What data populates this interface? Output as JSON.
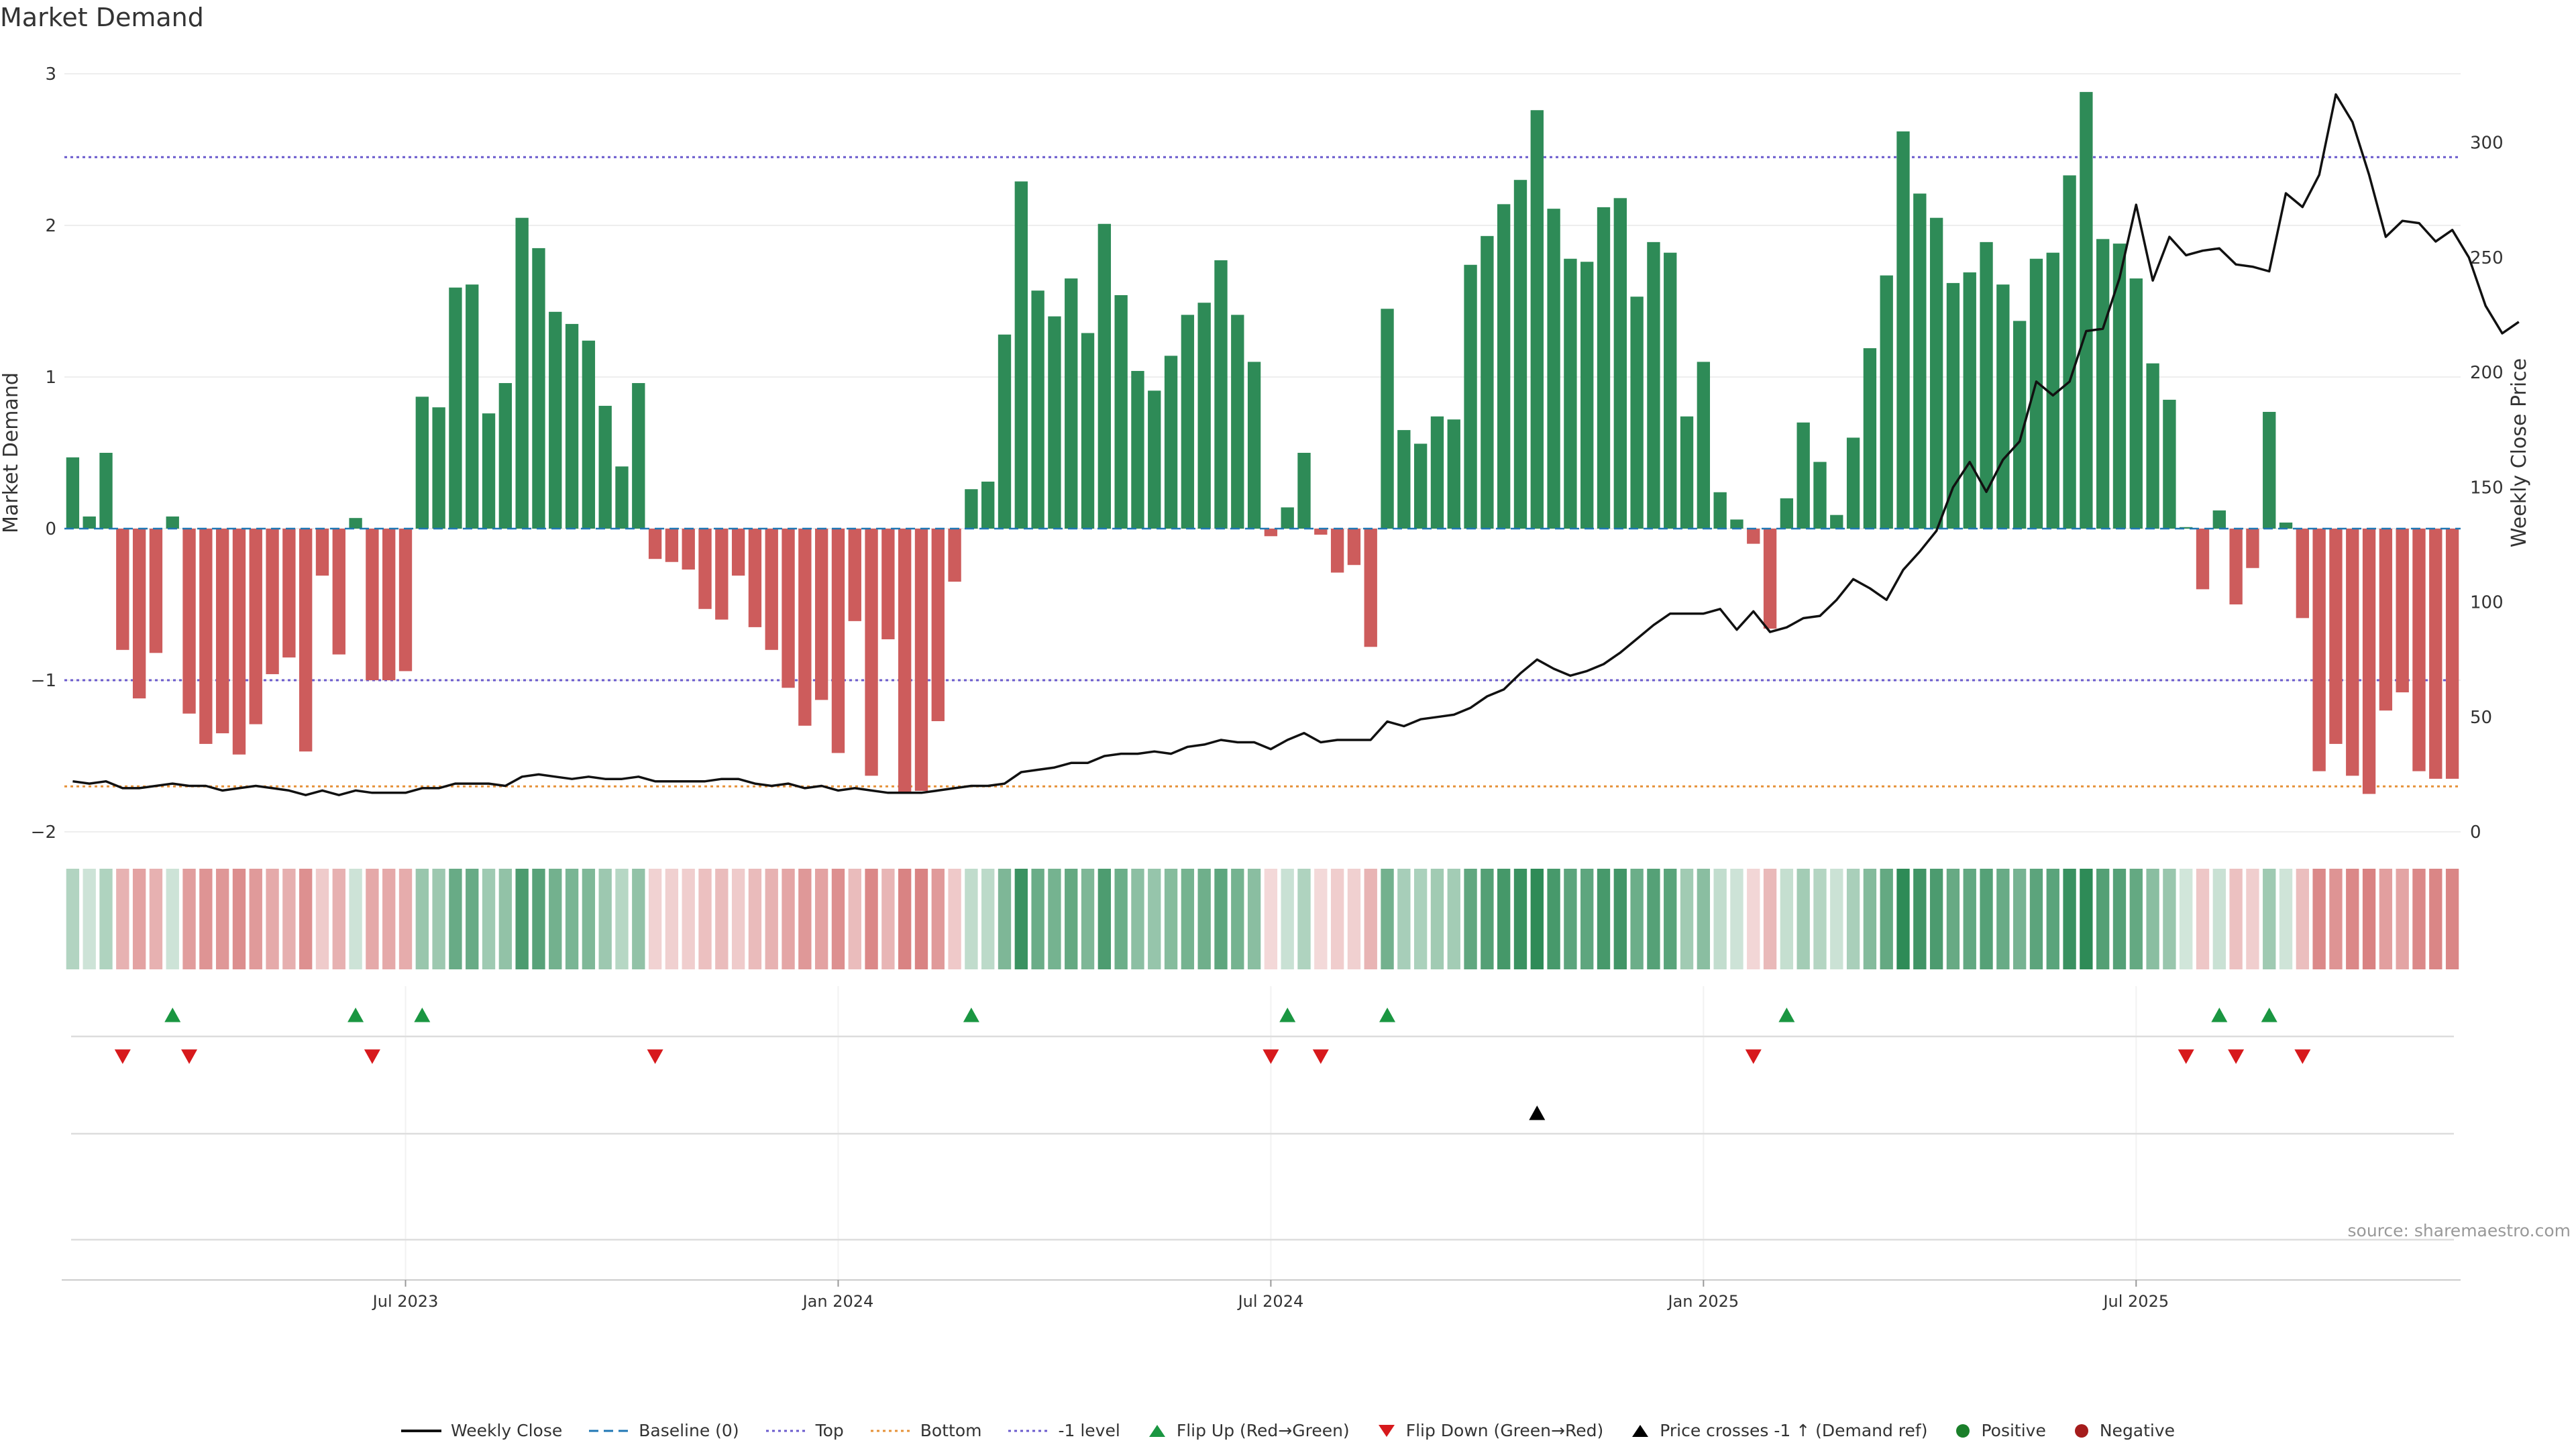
{
  "page": {
    "title": "Market Demand",
    "source": "source: sharemaestro.com"
  },
  "colors": {
    "positive": "#2e8b57",
    "negative": "#cd5c5c",
    "price": "#111111",
    "top": "#6a5acd",
    "bottom": "#e69138",
    "minus1": "#6a5acd",
    "flip_up": "#1a9641",
    "flip_down": "#d7191c",
    "cross": "#000000",
    "dot_pos": "#1a7f2a",
    "dot_neg": "#a51c1c"
  },
  "chart_data": {
    "type": "bar",
    "title": "Market Demand",
    "ylabel": "Market Demand",
    "y2label": "Weekly Close Price",
    "ylim": [
      -2,
      3
    ],
    "y2lim": [
      0,
      330
    ],
    "y_ticks": [
      "3",
      "2",
      "1",
      "0",
      "−1",
      "−2"
    ],
    "y2_ticks": [
      "300",
      "250",
      "200",
      "150",
      "100",
      "50",
      "0"
    ],
    "x_ticks": [
      {
        "label": "Jul 2023",
        "week": 20
      },
      {
        "label": "Jan 2024",
        "week": 46
      },
      {
        "label": "Jul 2024",
        "week": 72
      },
      {
        "label": "Jan 2025",
        "week": 98
      },
      {
        "label": "Jul 2025",
        "week": 124
      }
    ],
    "levels": {
      "top": 2.45,
      "bottom": -1.7,
      "minus1": -1.0,
      "baseline": 0
    },
    "demand": [
      0.47,
      0.08,
      0.5,
      -0.8,
      -1.12,
      -0.82,
      0.08,
      -1.22,
      -1.42,
      -1.35,
      -1.49,
      -1.29,
      -0.96,
      -0.85,
      -1.47,
      -0.31,
      -0.83,
      0.07,
      -1.0,
      -1.0,
      -0.94,
      0.87,
      0.8,
      1.59,
      1.61,
      0.76,
      0.96,
      2.05,
      1.85,
      1.43,
      1.35,
      1.24,
      0.81,
      0.41,
      0.96,
      -0.2,
      -0.22,
      -0.27,
      -0.53,
      -0.6,
      -0.31,
      -0.65,
      -0.8,
      -1.05,
      -1.3,
      -1.13,
      -1.48,
      -0.61,
      -1.63,
      -0.73,
      -1.74,
      -1.73,
      -1.27,
      -0.35,
      0.26,
      0.31,
      1.28,
      2.29,
      1.57,
      1.4,
      1.65,
      1.29,
      2.01,
      1.54,
      1.04,
      0.91,
      1.14,
      1.41,
      1.49,
      1.77,
      1.41,
      1.1,
      -0.05,
      0.14,
      0.5,
      -0.04,
      -0.29,
      -0.24,
      -0.78,
      1.45,
      0.65,
      0.56,
      0.74,
      0.72,
      1.74,
      1.93,
      2.14,
      2.3,
      2.76,
      2.11,
      1.78,
      1.76,
      2.12,
      2.18,
      1.53,
      1.89,
      1.82,
      0.74,
      1.1,
      0.24,
      0.06,
      -0.1,
      -0.66,
      0.2,
      0.7,
      0.44,
      0.09,
      0.6,
      1.19,
      1.67,
      2.62,
      2.21,
      2.05,
      1.62,
      1.69,
      1.89,
      1.61,
      1.37,
      1.78,
      1.82,
      2.33,
      2.88,
      1.91,
      1.88,
      1.65,
      1.09,
      0.85,
      0.01,
      -0.4,
      0.12,
      -0.5,
      -0.26,
      0.77,
      0.04,
      -0.59,
      -1.6,
      -1.42,
      -1.63,
      -1.75,
      -1.2,
      -1.08,
      -1.6,
      -1.65,
      -1.65
    ],
    "price": [
      22,
      21,
      22,
      19,
      19,
      20,
      21,
      20,
      20,
      18,
      19,
      20,
      19,
      18,
      16,
      18,
      16,
      18,
      17,
      17,
      17,
      19,
      19,
      21,
      21,
      21,
      20,
      24,
      25,
      24,
      23,
      24,
      23,
      23,
      24,
      22,
      22,
      22,
      22,
      23,
      23,
      21,
      20,
      21,
      19,
      20,
      18,
      19,
      18,
      17,
      17,
      17,
      18,
      19,
      20,
      20,
      21,
      26,
      27,
      28,
      30,
      30,
      33,
      34,
      34,
      35,
      34,
      37,
      38,
      40,
      39,
      39,
      36,
      40,
      43,
      39,
      40,
      40,
      40,
      48,
      46,
      49,
      50,
      51,
      54,
      59,
      62,
      69,
      75,
      71,
      68,
      70,
      73,
      78,
      84,
      90,
      95,
      95,
      95,
      97,
      88,
      96,
      87,
      89,
      93,
      94,
      101,
      110,
      106,
      101,
      114,
      122,
      131,
      150,
      161,
      148,
      162,
      170,
      196,
      190,
      196,
      218,
      219,
      241,
      273,
      240,
      259,
      251,
      253,
      254,
      247,
      246,
      244,
      278,
      272,
      286,
      321,
      309,
      286,
      259,
      266,
      265,
      257,
      262,
      250,
      229,
      217,
      222
    ],
    "flip_up_weeks": [
      6,
      17,
      21,
      54,
      73,
      79,
      103,
      129,
      132
    ],
    "flip_down_weeks": [
      3,
      7,
      18,
      35,
      72,
      75,
      101,
      127,
      130,
      134
    ],
    "cross_weeks": [
      88
    ],
    "dot_weeks": []
  },
  "legend": [
    {
      "key": "price",
      "label": "Weekly Close"
    },
    {
      "key": "baseline",
      "label": "Baseline (0)"
    },
    {
      "key": "top",
      "label": "Top"
    },
    {
      "key": "bottom",
      "label": "Bottom"
    },
    {
      "key": "minus1",
      "label": "-1 level"
    },
    {
      "key": "flip_up",
      "label": "Flip Up (Red→Green)"
    },
    {
      "key": "flip_down",
      "label": "Flip Down (Green→Red)"
    },
    {
      "key": "cross",
      "label": "Price crosses -1 ↑ (Demand ref)"
    },
    {
      "key": "dot_pos",
      "label": "Positive"
    },
    {
      "key": "dot_neg",
      "label": "Negative"
    }
  ]
}
